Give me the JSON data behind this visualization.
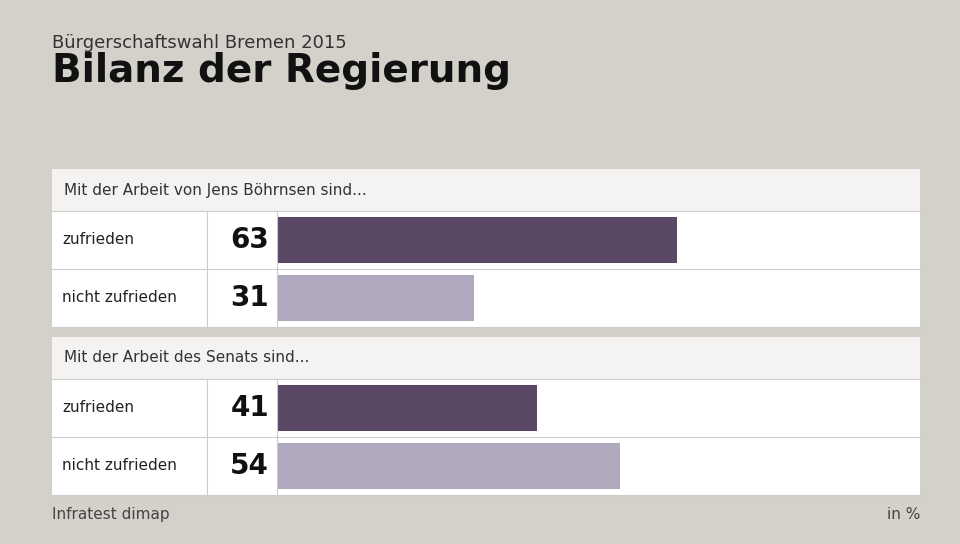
{
  "supertitle": "Bürgerschaftswahl Bremen 2015",
  "title": "Bilanz der Regierung",
  "section1_label": "Mit der Arbeit von Jens Böhrnsen sind...",
  "section2_label": "Mit der Arbeit des Senats sind...",
  "bars": [
    {
      "label": "zufrieden",
      "value": 63,
      "color": "#5a4865"
    },
    {
      "label": "nicht zufrieden",
      "value": 31,
      "color": "#b0a8bc"
    },
    {
      "label": "zufrieden",
      "value": 41,
      "color": "#5a4865"
    },
    {
      "label": "nicht zufrieden",
      "value": 54,
      "color": "#b0a8bc"
    }
  ],
  "max_value": 100,
  "source": "Infratest dimap",
  "unit": "in %",
  "bg_color": "#d4d0ca",
  "box_bg_color": "#ffffff",
  "row_bg_color": "#f2f0ee",
  "section_gap_color": "#d4d0ca"
}
